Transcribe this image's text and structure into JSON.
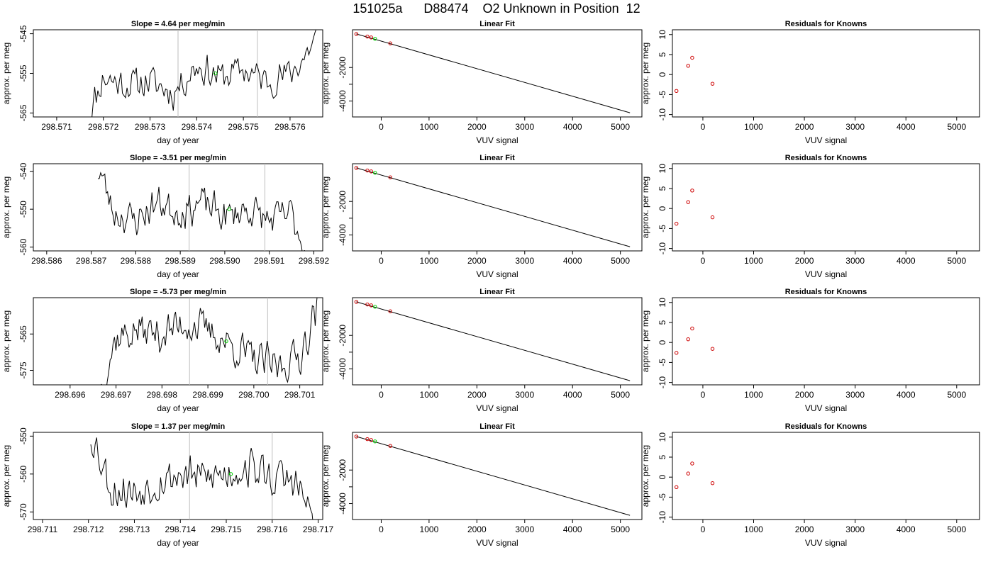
{
  "page": {
    "title_parts": [
      "151025a",
      "D88474",
      "O2 Unknown in Position",
      "12"
    ]
  },
  "colors": {
    "trace": "#000000",
    "vline": "#bebebe",
    "known": "#cd0000",
    "unknown": "#00cd00"
  },
  "chart_data": [
    {
      "type": "line",
      "title": "Slope =  4.64  per meg/min",
      "xlabel": "day of year",
      "ylabel": "approx. per meg",
      "xlim": [
        298.5705,
        298.5767
      ],
      "ylim": [
        -566,
        -544
      ],
      "xticks": [
        298.571,
        298.572,
        298.573,
        298.574,
        298.575,
        298.576
      ],
      "yticks": [
        -545,
        -555,
        -565
      ],
      "data_x_start": 298.57165,
      "data_x_end": 298.5766,
      "noise_seed": 11,
      "guide": [
        {
          "x": 298.5717,
          "y": -565
        },
        {
          "x": 298.572,
          "y": -556
        },
        {
          "x": 298.5725,
          "y": -558
        },
        {
          "x": 298.573,
          "y": -557
        },
        {
          "x": 298.5735,
          "y": -560
        },
        {
          "x": 298.574,
          "y": -553
        },
        {
          "x": 298.5745,
          "y": -556
        },
        {
          "x": 298.575,
          "y": -554
        },
        {
          "x": 298.5755,
          "y": -557
        },
        {
          "x": 298.576,
          "y": -555
        },
        {
          "x": 298.5763,
          "y": -551
        },
        {
          "x": 298.5766,
          "y": -545
        }
      ],
      "amplitude": 3.5,
      "vlines": [
        298.5736,
        298.5753
      ],
      "unknown_point": {
        "x": 298.5744,
        "y": -555
      }
    },
    {
      "type": "scatter",
      "title": "Linear Fit",
      "xlabel": "VUV signal",
      "ylabel": "approx. per meg",
      "xlim": [
        -600,
        5450
      ],
      "ylim": [
        -4950,
        250
      ],
      "xticks": [
        0,
        1000,
        2000,
        3000,
        4000,
        5000
      ],
      "yticks": [
        -2000,
        -3000,
        -4000
      ],
      "ytick_labels": [
        "-2000",
        "",
        "-4000"
      ],
      "fit_line": [
        [
          -520,
          0
        ],
        [
          5200,
          -4700
        ]
      ],
      "knowns": [
        {
          "x": -520,
          "y": 0
        },
        {
          "x": -290,
          "y": -155
        },
        {
          "x": -210,
          "y": -210
        },
        {
          "x": 190,
          "y": -560
        }
      ],
      "unknown": {
        "x": -130,
        "y": -290
      }
    },
    {
      "type": "scatter",
      "title": "Residuals for Knowns",
      "xlabel": "VUV signal",
      "ylabel": "approx. per meg",
      "xlim": [
        -600,
        5450
      ],
      "ylim": [
        -10.6,
        11.2
      ],
      "xticks": [
        0,
        1000,
        2000,
        3000,
        4000,
        5000
      ],
      "yticks": [
        10,
        5,
        0,
        -5,
        -10
      ],
      "residuals": [
        {
          "x": -520,
          "y": -4.1
        },
        {
          "x": -290,
          "y": 2.2
        },
        {
          "x": -210,
          "y": 4.2
        },
        {
          "x": 190,
          "y": -2.3
        }
      ]
    },
    {
      "type": "line",
      "title": "Slope =  -3.51  per meg/min",
      "xlabel": "day of year",
      "ylabel": "approx. per meg",
      "xlim": [
        298.5857,
        298.5922
      ],
      "ylim": [
        -561,
        -538
      ],
      "xticks": [
        298.586,
        298.587,
        298.588,
        298.589,
        298.59,
        298.591,
        298.592
      ],
      "yticks": [
        -540,
        -550,
        -560
      ],
      "data_x_start": 298.58715,
      "data_x_end": 298.59182,
      "noise_seed": 23,
      "guide": [
        {
          "x": 298.5872,
          "y": -540
        },
        {
          "x": 298.5875,
          "y": -551
        },
        {
          "x": 298.588,
          "y": -553
        },
        {
          "x": 298.5885,
          "y": -548
        },
        {
          "x": 298.589,
          "y": -551
        },
        {
          "x": 298.5895,
          "y": -548
        },
        {
          "x": 298.59,
          "y": -552
        },
        {
          "x": 298.5905,
          "y": -550
        },
        {
          "x": 298.591,
          "y": -553
        },
        {
          "x": 298.5915,
          "y": -551
        },
        {
          "x": 298.5918,
          "y": -561
        }
      ],
      "amplitude": 3.8,
      "vlines": [
        298.5892,
        298.5909
      ],
      "unknown_point": {
        "x": 298.5901,
        "y": -550
      }
    },
    {
      "type": "scatter",
      "title": "Linear Fit",
      "xlabel": "VUV signal",
      "ylabel": "approx. per meg",
      "xlim": [
        -600,
        5450
      ],
      "ylim": [
        -4950,
        250
      ],
      "xticks": [
        0,
        1000,
        2000,
        3000,
        4000,
        5000
      ],
      "yticks": [
        -2000,
        -3000,
        -4000
      ],
      "ytick_labels": [
        "-2000",
        "",
        "-4000"
      ],
      "fit_line": [
        [
          -520,
          0
        ],
        [
          5200,
          -4700
        ]
      ],
      "knowns": [
        {
          "x": -520,
          "y": 0
        },
        {
          "x": -290,
          "y": -155
        },
        {
          "x": -210,
          "y": -210
        },
        {
          "x": 190,
          "y": -560
        }
      ],
      "unknown": {
        "x": -130,
        "y": -290
      }
    },
    {
      "type": "scatter",
      "title": "Residuals for Knowns",
      "xlabel": "VUV signal",
      "ylabel": "approx. per meg",
      "xlim": [
        -600,
        5450
      ],
      "ylim": [
        -10.6,
        11.2
      ],
      "xticks": [
        0,
        1000,
        2000,
        3000,
        4000,
        5000
      ],
      "yticks": [
        10,
        5,
        0,
        -5,
        -10
      ],
      "residuals": [
        {
          "x": -520,
          "y": -3.8
        },
        {
          "x": -290,
          "y": 1.6
        },
        {
          "x": -210,
          "y": 4.5
        },
        {
          "x": 190,
          "y": -2.2
        }
      ]
    },
    {
      "type": "line",
      "title": "Slope =  -5.73  per meg/min",
      "xlabel": "day of year",
      "ylabel": "approx. per meg",
      "xlim": [
        298.6952,
        298.7015
      ],
      "ylim": [
        -579,
        -555
      ],
      "xticks": [
        298.696,
        298.697,
        298.698,
        298.699,
        298.7,
        298.701
      ],
      "yticks": [
        -565,
        -575
      ],
      "data_x_start": 298.69665,
      "data_x_end": 298.7014,
      "noise_seed": 37,
      "guide": [
        {
          "x": 298.6967,
          "y": -579
        },
        {
          "x": 298.697,
          "y": -566
        },
        {
          "x": 298.6975,
          "y": -564
        },
        {
          "x": 298.698,
          "y": -565
        },
        {
          "x": 298.6985,
          "y": -562
        },
        {
          "x": 298.699,
          "y": -564
        },
        {
          "x": 298.6995,
          "y": -568
        },
        {
          "x": 298.7,
          "y": -572
        },
        {
          "x": 298.7005,
          "y": -574
        },
        {
          "x": 298.701,
          "y": -571
        },
        {
          "x": 298.7014,
          "y": -557
        }
      ],
      "amplitude": 4.5,
      "vlines": [
        298.6986,
        298.7003
      ],
      "unknown_point": {
        "x": 298.6994,
        "y": -567
      }
    },
    {
      "type": "scatter",
      "title": "Linear Fit",
      "xlabel": "VUV signal",
      "ylabel": "approx. per meg",
      "xlim": [
        -600,
        5450
      ],
      "ylim": [
        -4950,
        250
      ],
      "xticks": [
        0,
        1000,
        2000,
        3000,
        4000,
        5000
      ],
      "yticks": [
        -2000,
        -3000,
        -4000
      ],
      "ytick_labels": [
        "-2000",
        "",
        "-4000"
      ],
      "fit_line": [
        [
          -520,
          0
        ],
        [
          5200,
          -4700
        ]
      ],
      "knowns": [
        {
          "x": -520,
          "y": 0
        },
        {
          "x": -290,
          "y": -155
        },
        {
          "x": -210,
          "y": -210
        },
        {
          "x": 190,
          "y": -560
        }
      ],
      "unknown": {
        "x": -130,
        "y": -290
      }
    },
    {
      "type": "scatter",
      "title": "Residuals for Knowns",
      "xlabel": "VUV signal",
      "ylabel": "approx. per meg",
      "xlim": [
        -600,
        5450
      ],
      "ylim": [
        -10.6,
        11.2
      ],
      "xticks": [
        0,
        1000,
        2000,
        3000,
        4000,
        5000
      ],
      "yticks": [
        10,
        5,
        0,
        -5,
        -10
      ],
      "residuals": [
        {
          "x": -520,
          "y": -2.6
        },
        {
          "x": -290,
          "y": 0.8
        },
        {
          "x": -210,
          "y": 3.5
        },
        {
          "x": 190,
          "y": -1.6
        }
      ]
    },
    {
      "type": "line",
      "title": "Slope =  1.37  per meg/min",
      "xlabel": "day of year",
      "ylabel": "approx. per meg",
      "xlim": [
        298.7108,
        298.7171
      ],
      "ylim": [
        -572,
        -549
      ],
      "xticks": [
        298.711,
        298.712,
        298.713,
        298.714,
        298.715,
        298.716,
        298.717
      ],
      "yticks": [
        -550,
        -560,
        -570
      ],
      "data_x_start": 298.71205,
      "data_x_end": 298.7169,
      "noise_seed": 53,
      "guide": [
        {
          "x": 298.7121,
          "y": -550
        },
        {
          "x": 298.7125,
          "y": -564
        },
        {
          "x": 298.713,
          "y": -565
        },
        {
          "x": 298.7135,
          "y": -562
        },
        {
          "x": 298.714,
          "y": -560
        },
        {
          "x": 298.7145,
          "y": -561
        },
        {
          "x": 298.715,
          "y": -560
        },
        {
          "x": 298.7155,
          "y": -558
        },
        {
          "x": 298.716,
          "y": -561
        },
        {
          "x": 298.7165,
          "y": -562
        },
        {
          "x": 298.7169,
          "y": -572
        }
      ],
      "amplitude": 4.5,
      "vlines": [
        298.7142,
        298.716
      ],
      "unknown_point": {
        "x": 298.7151,
        "y": -560
      }
    },
    {
      "type": "scatter",
      "title": "Linear Fit",
      "xlabel": "VUV signal",
      "ylabel": "approx. per meg",
      "xlim": [
        -600,
        5450
      ],
      "ylim": [
        -4950,
        250
      ],
      "xticks": [
        0,
        1000,
        2000,
        3000,
        4000,
        5000
      ],
      "yticks": [
        -2000,
        -3000,
        -4000
      ],
      "ytick_labels": [
        "-2000",
        "",
        "-4000"
      ],
      "fit_line": [
        [
          -520,
          0
        ],
        [
          5200,
          -4700
        ]
      ],
      "knowns": [
        {
          "x": -520,
          "y": 0
        },
        {
          "x": -290,
          "y": -155
        },
        {
          "x": -210,
          "y": -210
        },
        {
          "x": 190,
          "y": -560
        }
      ],
      "unknown": {
        "x": -130,
        "y": -290
      }
    },
    {
      "type": "scatter",
      "title": "Residuals for Knowns",
      "xlabel": "VUV signal",
      "ylabel": "approx. per meg",
      "xlim": [
        -600,
        5450
      ],
      "ylim": [
        -10.6,
        11.2
      ],
      "xticks": [
        0,
        1000,
        2000,
        3000,
        4000,
        5000
      ],
      "yticks": [
        10,
        5,
        0,
        -5,
        -10
      ],
      "residuals": [
        {
          "x": -520,
          "y": -2.5
        },
        {
          "x": -290,
          "y": 0.9
        },
        {
          "x": -210,
          "y": 3.4
        },
        {
          "x": 190,
          "y": -1.5
        }
      ]
    }
  ]
}
